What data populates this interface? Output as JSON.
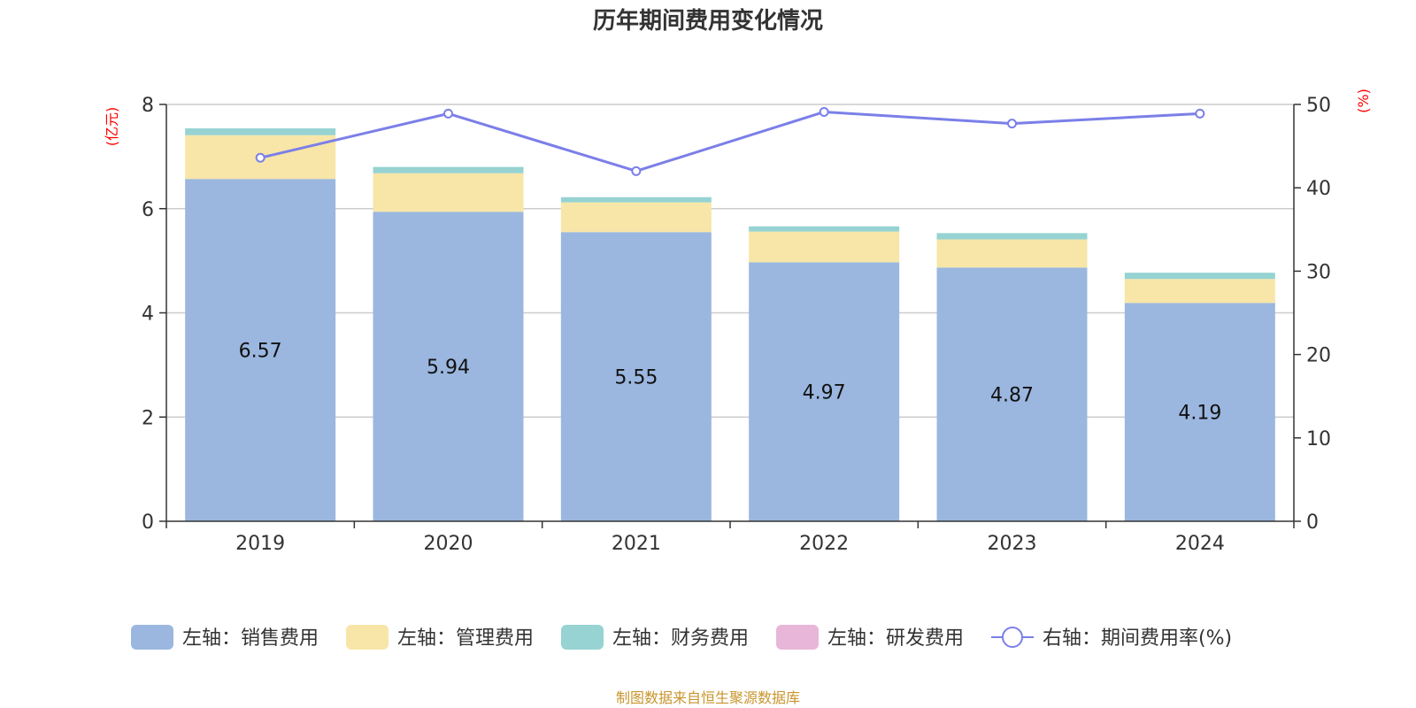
{
  "chart_data": {
    "type": "bar",
    "title": "历年期间费用变化情况",
    "categories": [
      "2019",
      "2020",
      "2021",
      "2022",
      "2023",
      "2024"
    ],
    "y_left": {
      "label": "(亿元)",
      "min": 0,
      "max": 8,
      "ticks": [
        "0",
        "2",
        "4",
        "6",
        "8"
      ]
    },
    "y_right": {
      "label": "(%)",
      "min": 0,
      "max": 50,
      "ticks": [
        "0",
        "10",
        "20",
        "30",
        "40",
        "50"
      ]
    },
    "grid": true,
    "stacked": true,
    "series": [
      {
        "name": "左轴：销售费用",
        "axis": "left",
        "type": "bar",
        "color": "#9bb7e0",
        "values": [
          6.57,
          5.94,
          5.55,
          4.97,
          4.87,
          4.19
        ],
        "labels": [
          "6.57",
          "5.94",
          "5.55",
          "4.97",
          "4.87",
          "4.19"
        ]
      },
      {
        "name": "左轴：管理费用",
        "axis": "left",
        "type": "bar",
        "color": "#f7e6a7",
        "values": [
          0.84,
          0.74,
          0.57,
          0.59,
          0.54,
          0.46
        ]
      },
      {
        "name": "左轴：财务费用",
        "axis": "left",
        "type": "bar",
        "color": "#96d3d2",
        "values": [
          0.13,
          0.12,
          0.1,
          0.1,
          0.12,
          0.12
        ]
      },
      {
        "name": "左轴：研发费用",
        "axis": "left",
        "type": "bar",
        "color": "#e8b6d8",
        "values": [
          0,
          0,
          0,
          0,
          0,
          0
        ]
      },
      {
        "name": "右轴：期间费用率(%)",
        "axis": "right",
        "type": "line",
        "color": "#7b7fe8",
        "values": [
          43.6,
          48.9,
          42.0,
          49.1,
          47.7,
          48.9
        ]
      }
    ],
    "legend_position": "bottom",
    "source": "制图数据来自恒生聚源数据库"
  }
}
